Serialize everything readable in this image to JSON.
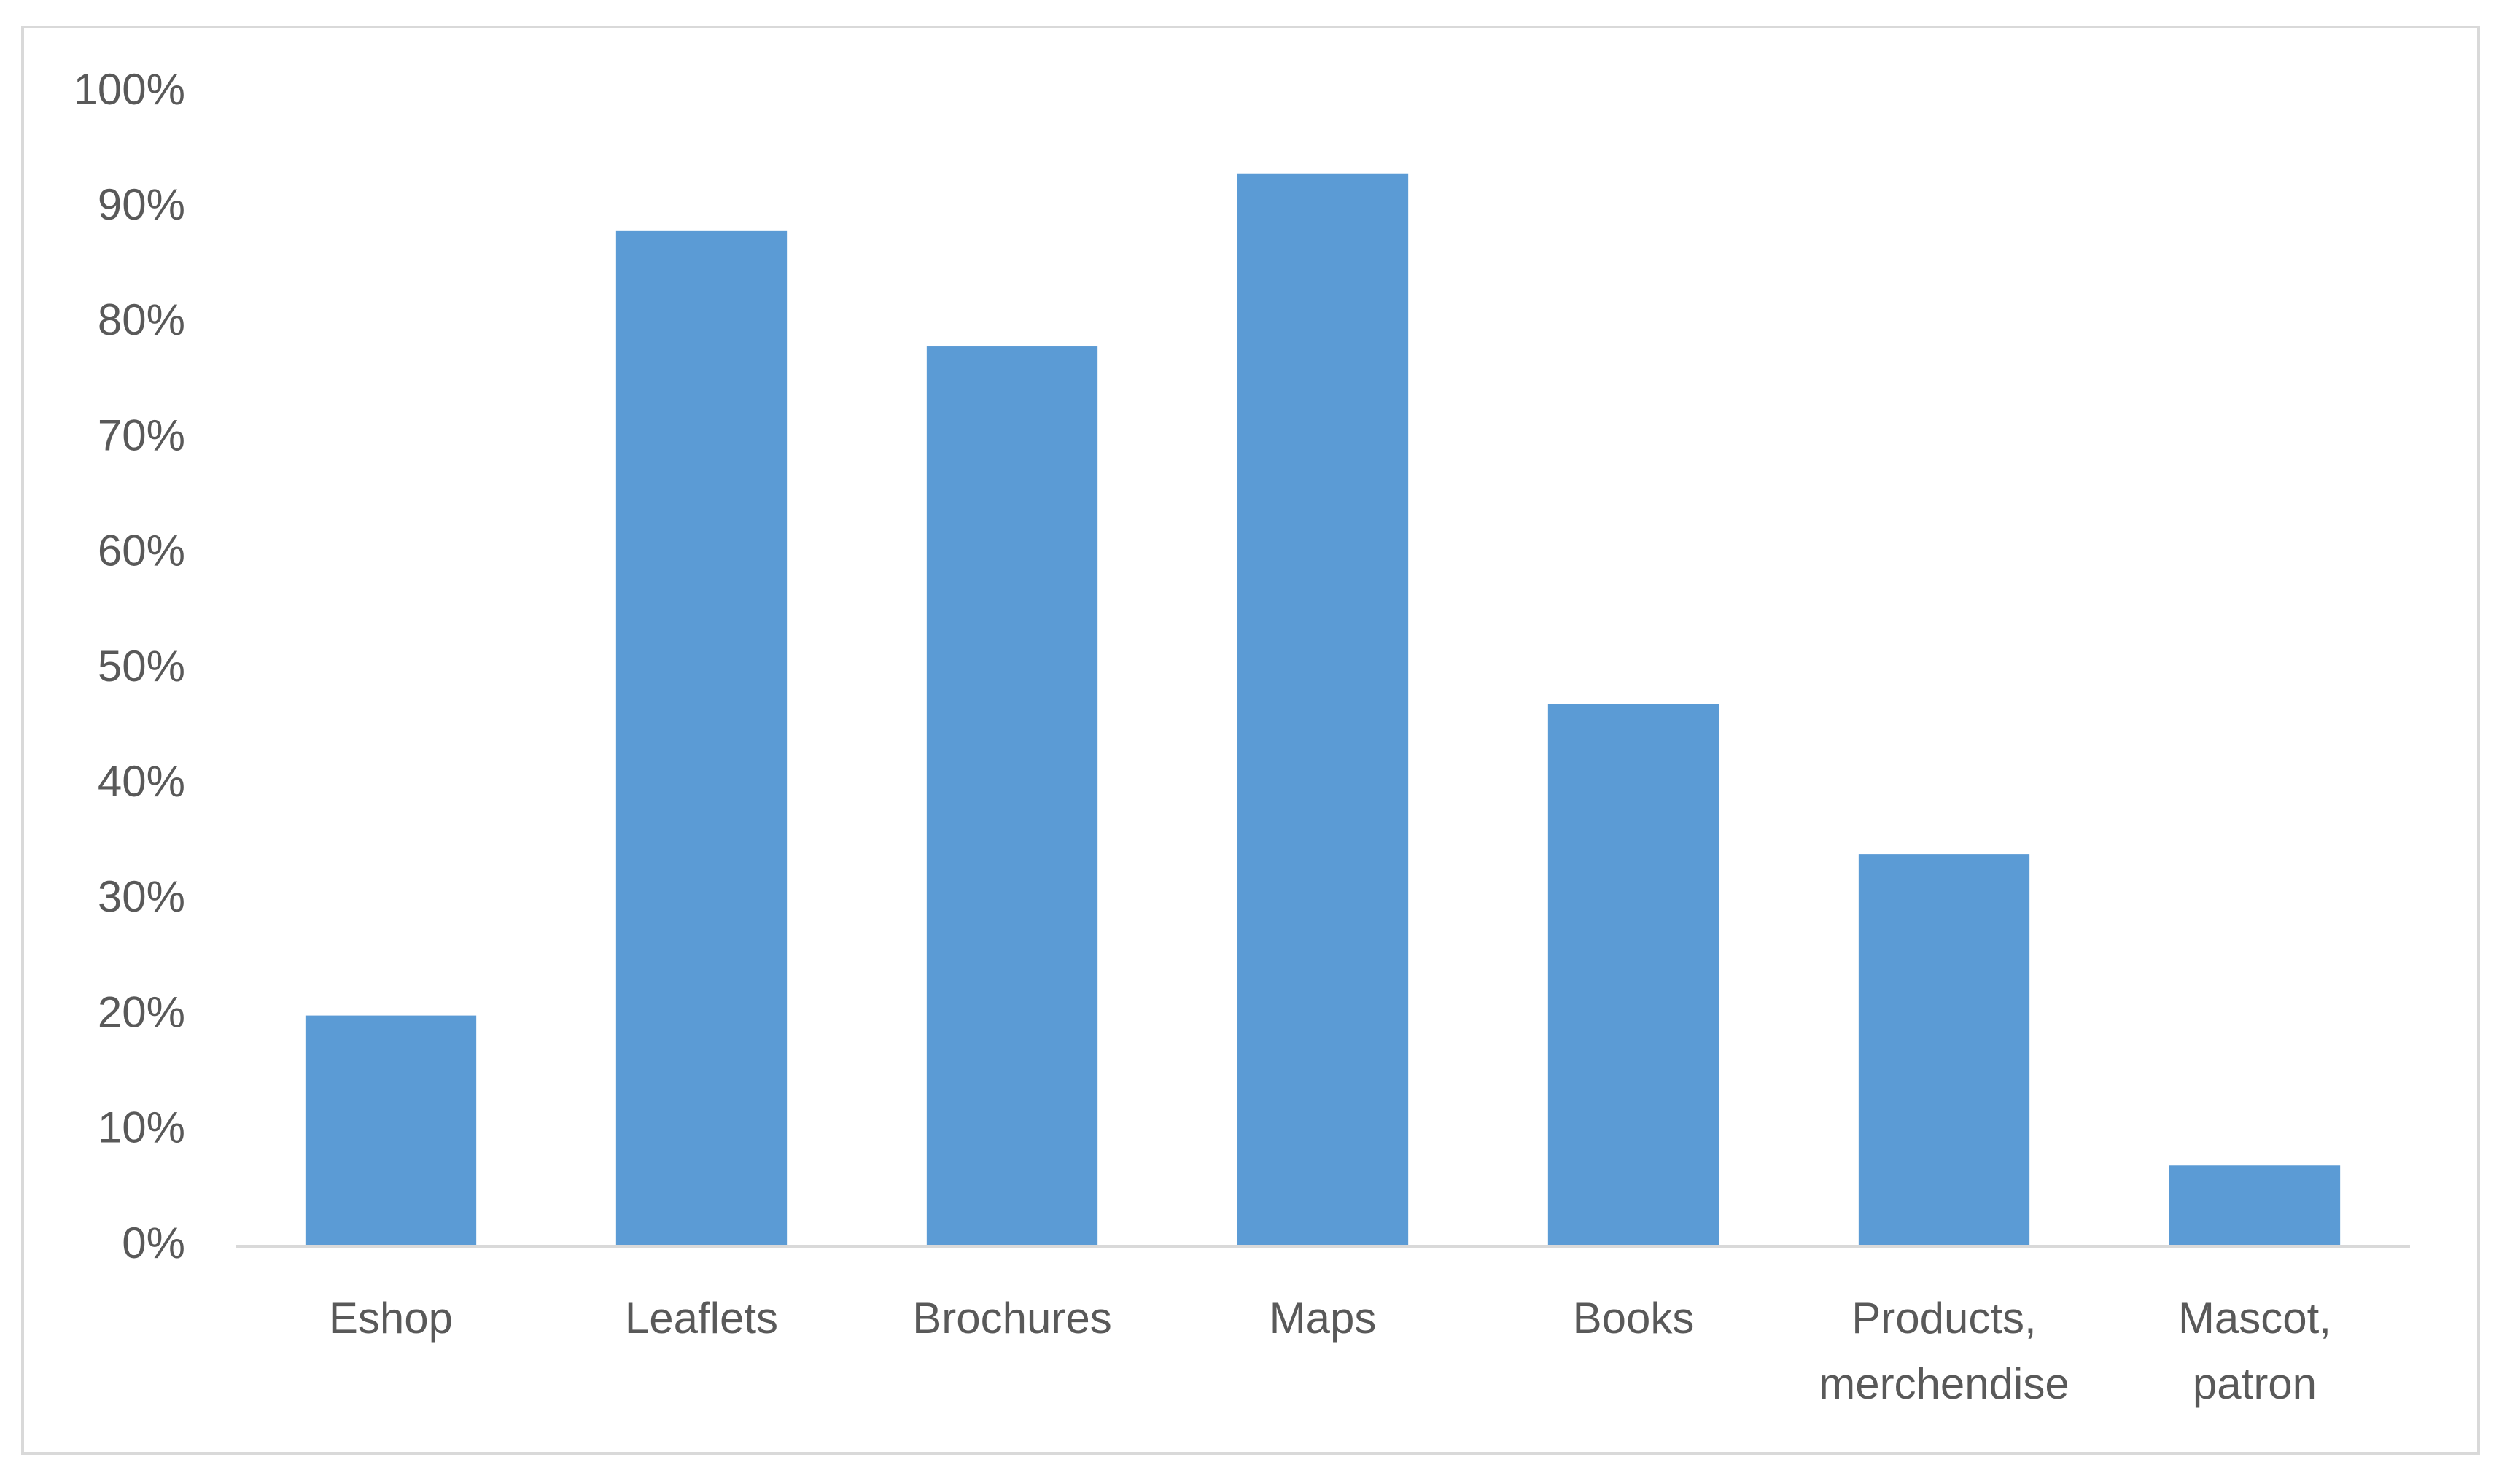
{
  "chart_data": {
    "type": "bar",
    "categories": [
      "Eshop",
      "Leaflets",
      "Brochures",
      "Maps",
      "Books",
      "Products, merchendise",
      "Mascot, patron"
    ],
    "values": [
      20,
      88,
      78,
      93,
      47,
      34,
      7
    ],
    "color": "#5b9bd5",
    "ylim": [
      0,
      100
    ],
    "yticks": [
      {
        "value": 0,
        "label": "0%"
      },
      {
        "value": 10,
        "label": "10%"
      },
      {
        "value": 20,
        "label": "20%"
      },
      {
        "value": 30,
        "label": "30%"
      },
      {
        "value": 40,
        "label": "40%"
      },
      {
        "value": 50,
        "label": "50%"
      },
      {
        "value": 60,
        "label": "60%"
      },
      {
        "value": 70,
        "label": "70%"
      },
      {
        "value": 80,
        "label": "80%"
      },
      {
        "value": 90,
        "label": "90%"
      },
      {
        "value": 100,
        "label": "100%"
      }
    ],
    "grid": false
  }
}
